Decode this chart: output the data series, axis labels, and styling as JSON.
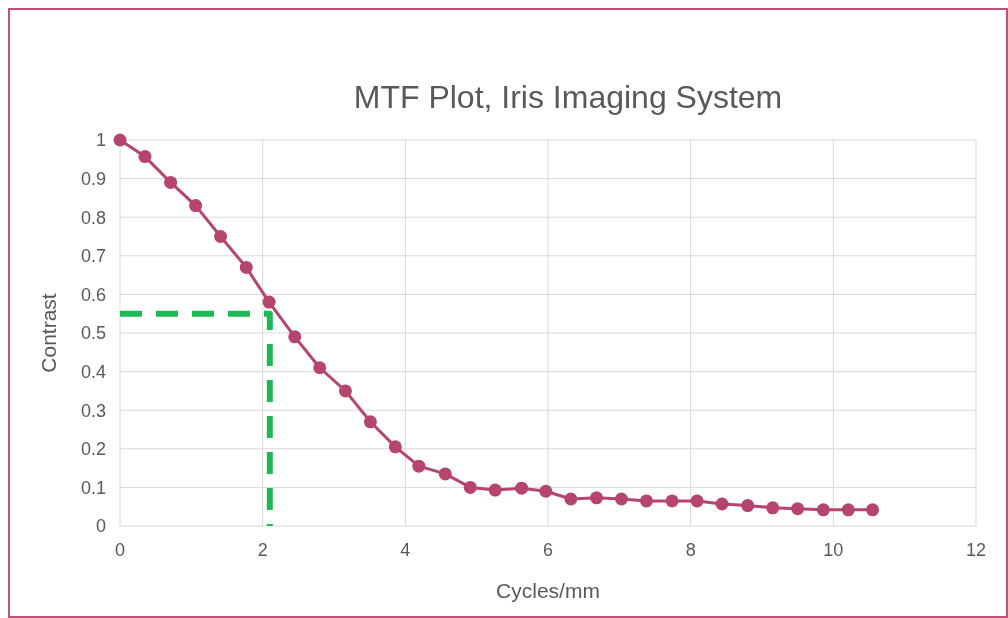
{
  "chart_data": {
    "type": "line",
    "title": "MTF Plot, Iris Imaging System",
    "xlabel": "Cycles/mm",
    "ylabel": "Contrast",
    "xlim": [
      0,
      12
    ],
    "xticks": [
      0,
      2,
      4,
      6,
      8,
      10,
      12
    ],
    "ylim": [
      0,
      1
    ],
    "yticks": [
      0,
      0.1,
      0.2,
      0.3,
      0.4,
      0.5,
      0.6,
      0.7,
      0.8,
      0.9,
      1
    ],
    "grid": true,
    "series": [
      {
        "color": "#b5446e",
        "marker": "circle",
        "line_style": "solid",
        "x": [
          0,
          0.35,
          0.71,
          1.06,
          1.41,
          1.77,
          2.09,
          2.45,
          2.8,
          3.16,
          3.51,
          3.86,
          4.19,
          4.56,
          4.91,
          5.26,
          5.63,
          5.97,
          6.32,
          6.68,
          7.03,
          7.38,
          7.74,
          8.09,
          8.44,
          8.8,
          9.15,
          9.5,
          9.86,
          10.21,
          10.55
        ],
        "values": [
          1,
          0.957,
          0.89,
          0.83,
          0.75,
          0.67,
          0.58,
          0.49,
          0.41,
          0.35,
          0.27,
          0.205,
          0.155,
          0.135,
          0.1,
          0.093,
          0.098,
          0.09,
          0.07,
          0.073,
          0.07,
          0.065,
          0.065,
          0.065,
          0.057,
          0.053,
          0.047,
          0.045,
          0.042,
          0.042,
          0.042
        ]
      },
      {
        "color": "#1db954",
        "marker": "none",
        "line_style": "dashed",
        "x": [
          0,
          2.1,
          2.1
        ],
        "values": [
          0.55,
          0.55,
          0
        ]
      }
    ]
  }
}
